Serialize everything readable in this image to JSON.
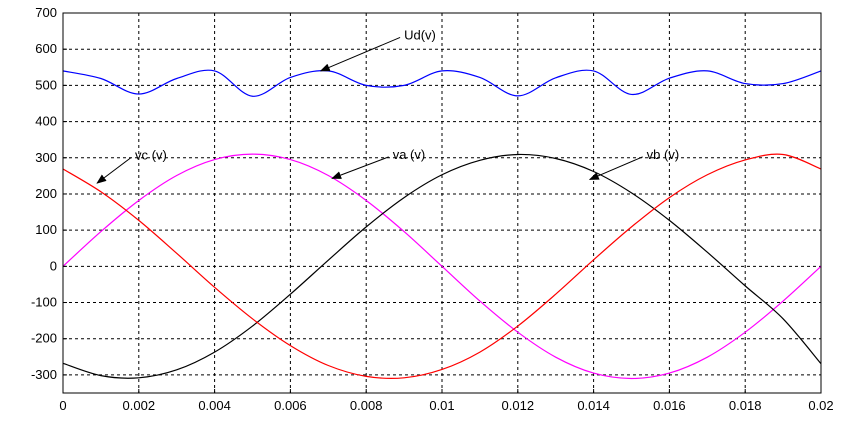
{
  "chart_data": {
    "type": "line",
    "title": "",
    "xlabel": "",
    "ylabel": "",
    "xlim": [
      0,
      0.02
    ],
    "ylim": [
      -350,
      700
    ],
    "grid": true,
    "x_ticks": [
      0,
      0.002,
      0.004,
      0.006,
      0.008,
      0.01,
      0.012,
      0.014,
      0.016,
      0.018,
      0.02
    ],
    "x_tick_labels": [
      "0",
      "0.002",
      "0.004",
      "0.006",
      "0.008",
      "0.01",
      "0.012",
      "0.014",
      "0.016",
      "0.018",
      "0.02"
    ],
    "y_ticks": [
      -300,
      -200,
      -100,
      0,
      100,
      200,
      300,
      400,
      500,
      600,
      700
    ],
    "y_tick_labels": [
      "-300",
      "-200",
      "-100",
      "0",
      "100",
      "200",
      "300",
      "400",
      "500",
      "600",
      "700"
    ],
    "x": [
      0,
      0.001,
      0.002,
      0.003,
      0.004,
      0.005,
      0.006,
      0.007,
      0.008,
      0.009,
      0.01,
      0.011,
      0.012,
      0.013,
      0.014,
      0.015,
      0.016,
      0.017,
      0.018,
      0.019,
      0.02
    ],
    "series": [
      {
        "name": "Ud(v)",
        "color": "#0000ff",
        "values": [
          540,
          519,
          476,
          519,
          540,
          470,
          522,
          540,
          500,
          500,
          540,
          522,
          471,
          521,
          540,
          475,
          520,
          540,
          505,
          505,
          540
        ]
      },
      {
        "name": "va (v)",
        "color": "#ff00ff",
        "values": [
          0,
          96,
          182,
          251,
          295,
          310,
          295,
          251,
          182,
          96,
          0,
          -96,
          -182,
          -251,
          -295,
          -310,
          -295,
          -251,
          -182,
          -96,
          0
        ]
      },
      {
        "name": "vb (v)",
        "color": "#000000",
        "values": [
          -268,
          -302,
          -308,
          -286,
          -237,
          -165,
          -77,
          17,
          109,
          190,
          253,
          293,
          309,
          298,
          262,
          203,
          127,
          39,
          -54,
          -145,
          -269
        ]
      },
      {
        "name": "vc (v)",
        "color": "#ff0000",
        "values": [
          269,
          206,
          127,
          36,
          -58,
          -145,
          -219,
          -274,
          -304,
          -308,
          -285,
          -237,
          -165,
          -77,
          18,
          109,
          190,
          253,
          294,
          309,
          269
        ]
      }
    ],
    "annotations": [
      {
        "text": "Ud(v)",
        "series": "Ud(v)",
        "x": 0.0068,
        "y": 540,
        "text_x": 0.009,
        "text_y": 638
      },
      {
        "text": "vc (v)",
        "series": "vc (v)",
        "x": 0.0009,
        "y": 230,
        "text_x": 0.0019,
        "text_y": 306
      },
      {
        "text": "va (v)",
        "series": "va (v)",
        "x": 0.0071,
        "y": 243,
        "text_x": 0.0087,
        "text_y": 308
      },
      {
        "text": "vb (v)",
        "series": "vb (v)",
        "x": 0.0139,
        "y": 240,
        "text_x": 0.0154,
        "text_y": 308
      }
    ]
  }
}
